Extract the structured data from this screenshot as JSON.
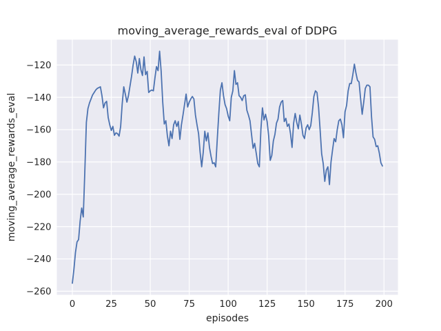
{
  "figure": {
    "background": "#ffffff"
  },
  "chart_data": {
    "type": "line",
    "title": "moving_average_rewards_eval of DDPG",
    "xlabel": "episodes",
    "ylabel": "moving_average_rewards_eval",
    "x_start": 0,
    "x_step": 1,
    "values": [
      -255,
      -246.5,
      -236,
      -229.5,
      -228,
      -216.5,
      -208.5,
      -214,
      -186,
      -155.5,
      -147,
      -143.5,
      -141,
      -138.5,
      -137,
      -135.5,
      -134.5,
      -134,
      -133.5,
      -139,
      -146.5,
      -143.5,
      -142.5,
      -152.5,
      -157,
      -160.5,
      -158,
      -163.5,
      -162,
      -162.5,
      -164,
      -158,
      -144,
      -133.5,
      -138,
      -143,
      -139,
      -133,
      -127,
      -120,
      -114.5,
      -118,
      -125,
      -116,
      -123,
      -126.5,
      -115,
      -126,
      -124,
      -137,
      -136,
      -135.5,
      -136,
      -128,
      -121,
      -123.5,
      -111.5,
      -124,
      -143,
      -156.5,
      -154.5,
      -164,
      -170,
      -161,
      -165.5,
      -157,
      -154.5,
      -158,
      -155,
      -166,
      -157,
      -151,
      -144.5,
      -138,
      -146,
      -143,
      -141,
      -139.5,
      -141,
      -151,
      -157,
      -162.5,
      -174,
      -183,
      -174,
      -161,
      -167,
      -162,
      -171,
      -176.5,
      -181,
      -180.5,
      -183,
      -166,
      -150,
      -135.5,
      -131,
      -139,
      -144.5,
      -147,
      -151.5,
      -154.5,
      -140,
      -136,
      -123.5,
      -132,
      -131,
      -139,
      -140,
      -142,
      -139,
      -138.5,
      -148,
      -151,
      -154.5,
      -163,
      -171.5,
      -168.5,
      -174.5,
      -181,
      -183,
      -160,
      -146.5,
      -154,
      -150.5,
      -155,
      -164,
      -179,
      -176,
      -167,
      -163,
      -156,
      -153.5,
      -146,
      -143,
      -142,
      -155,
      -153,
      -158,
      -156.5,
      -162.5,
      -171,
      -156,
      -150,
      -155.5,
      -159.5,
      -151,
      -156.5,
      -163.5,
      -165.5,
      -159,
      -157,
      -160,
      -157.5,
      -149.5,
      -139.5,
      -136,
      -137,
      -146,
      -160,
      -175,
      -181,
      -192,
      -185,
      -183,
      -194,
      -180,
      -172.5,
      -165.5,
      -167.5,
      -160,
      -154.5,
      -153.5,
      -157,
      -165,
      -149,
      -145,
      -136,
      -131.5,
      -131.5,
      -126,
      -119.5,
      -125,
      -129.5,
      -130.5,
      -141,
      -150.5,
      -143,
      -134.5,
      -132.5,
      -132.5,
      -133.5,
      -152,
      -164.5,
      -166,
      -170.5,
      -170,
      -174.5,
      -180.5,
      -182.5
    ],
    "xticks": [
      0,
      25,
      50,
      75,
      100,
      125,
      150,
      175,
      200
    ],
    "yticks": [
      -260,
      -240,
      -220,
      -200,
      -180,
      -160,
      -140,
      -120
    ],
    "xlim": [
      -9.95,
      208.95
    ],
    "ylim": [
      -262.18,
      -104.33
    ],
    "grid": true,
    "legend": null,
    "style": {
      "panel_color": "#eaeaf2",
      "grid_color": "#ffffff",
      "line_color": "#4c72b0",
      "text_color": "#262626",
      "line_width": 1.8,
      "grid_width": 1.2
    }
  }
}
